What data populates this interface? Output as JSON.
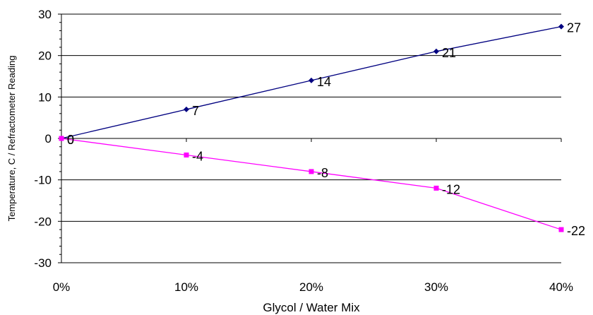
{
  "chart_data": {
    "type": "line",
    "xlabel": "Glycol / Water Mix",
    "ylabel": "Temperature, C / Refractometer Reading",
    "x": [
      0,
      10,
      20,
      30,
      40
    ],
    "x_tick_labels": [
      "0%",
      "10%",
      "20%",
      "30%",
      "40%"
    ],
    "xlim": [
      0,
      40
    ],
    "ylim": [
      -30,
      30
    ],
    "y_ticks": [
      -30,
      -20,
      -10,
      0,
      10,
      20,
      30
    ],
    "grid": "horizontal",
    "legend": "none",
    "series": [
      {
        "values": [
          0,
          7,
          14,
          21,
          27
        ],
        "data_labels": [
          "0",
          "7",
          "14",
          "21",
          "27"
        ],
        "color": "#000080",
        "marker": "diamond"
      },
      {
        "values": [
          0,
          -4,
          -8,
          -12,
          -22
        ],
        "data_labels": [
          "0",
          "-4",
          "-8",
          "-12",
          "-22"
        ],
        "color": "#FF00FF",
        "marker": "square"
      }
    ]
  }
}
